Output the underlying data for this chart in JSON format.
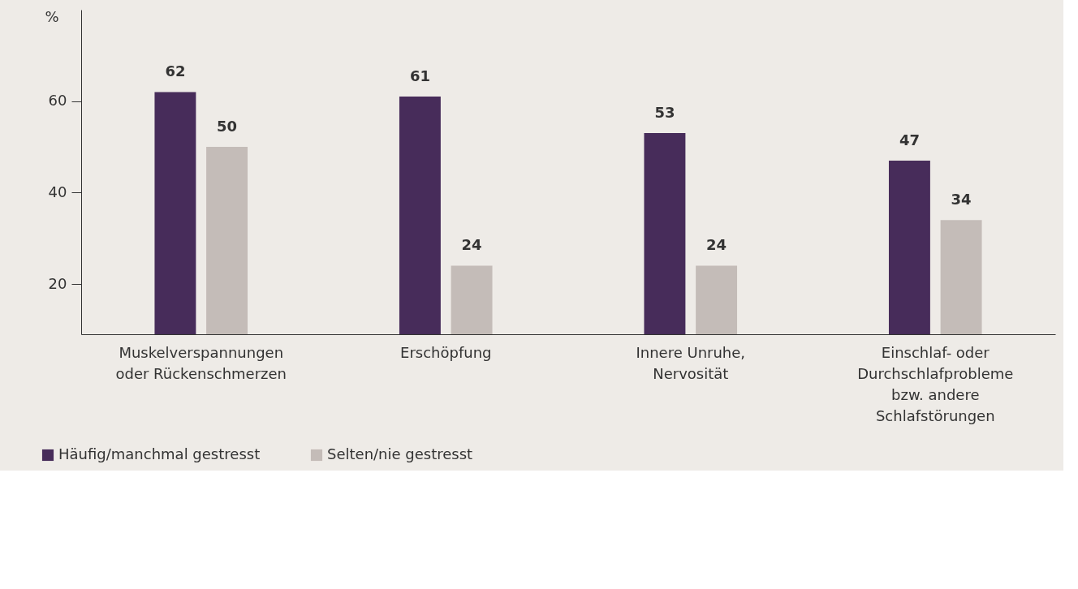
{
  "chart_data": {
    "type": "bar",
    "ylabel": "%",
    "categories": [
      "Muskelverspannungen oder Rückenschmerzen",
      "Erschöpfung",
      "Innere Unruhe, Nervosität",
      "Einschlaf- oder Durchschlafprobleme bzw. andere Schlafstörungen"
    ],
    "series": [
      {
        "name": "Häufig/manchmal gestresst",
        "color": "#472c5a",
        "values": [
          62,
          61,
          53,
          47
        ]
      },
      {
        "name": "Selten/nie gestresst",
        "color": "#c4bcb8",
        "values": [
          50,
          24,
          24,
          34
        ]
      }
    ],
    "ylim": [
      9,
      80
    ],
    "yticks": [
      20,
      40,
      60
    ],
    "grid": false,
    "legend": "bottom left",
    "data_labels": true
  }
}
